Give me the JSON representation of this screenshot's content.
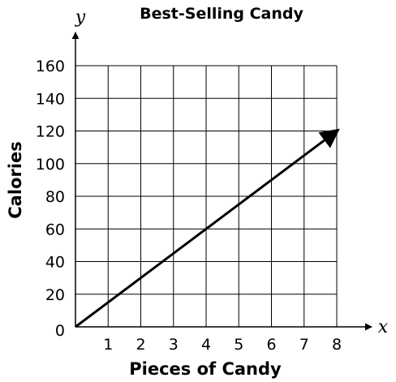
{
  "chart_data": {
    "type": "line",
    "title": "Best-Selling Candy",
    "xlabel": "Pieces of Candy",
    "ylabel": "Calories",
    "x_axis_letter": "x",
    "y_axis_letter": "y",
    "xlim": [
      0,
      8
    ],
    "ylim": [
      0,
      160
    ],
    "x_ticks": [
      1,
      2,
      3,
      4,
      5,
      6,
      7,
      8
    ],
    "y_ticks": [
      20,
      40,
      60,
      80,
      100,
      120,
      140,
      160
    ],
    "origin_label": "0",
    "grid": true,
    "series": [
      {
        "x": [
          0,
          8
        ],
        "y": [
          0,
          120
        ],
        "arrow_end": true
      }
    ]
  }
}
